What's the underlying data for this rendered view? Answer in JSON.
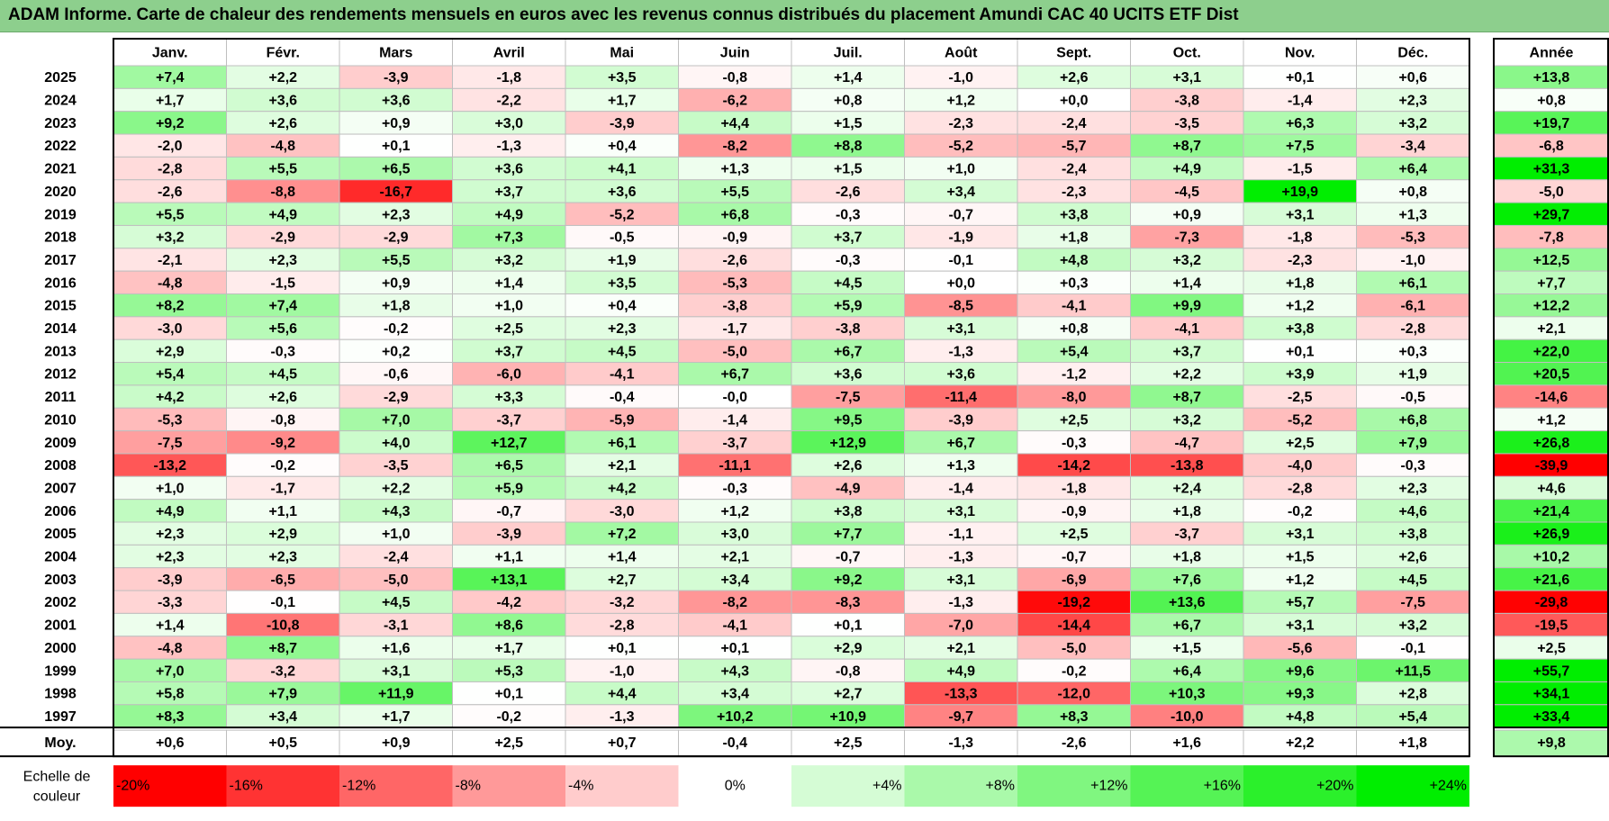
{
  "title": "ADAM Informe. Carte de chaleur des rendements mensuels en euros avec les revenus connus distribués du placement Amundi CAC 40 UCITS ETF Dist",
  "chart_data": {
    "type": "heatmap",
    "months": [
      "Janv.",
      "Févr.",
      "Mars",
      "Avril",
      "Mai",
      "Juin",
      "Juil.",
      "Août",
      "Sept.",
      "Oct.",
      "Nov.",
      "Déc."
    ],
    "year_header": "Année",
    "avg_label": "Moy.",
    "rows": [
      {
        "year": "2025",
        "values": [
          "+7,4",
          "+2,2",
          "-3,9",
          "-1,8",
          "+3,5",
          "-0,8",
          "+1,4",
          "-1,0",
          "+2,6",
          "+3,1",
          "+0,1",
          "+0,6"
        ],
        "annual": "+13,8"
      },
      {
        "year": "2024",
        "values": [
          "+1,7",
          "+3,6",
          "+3,6",
          "-2,2",
          "+1,7",
          "-6,2",
          "+0,8",
          "+1,2",
          "+0,0",
          "-3,8",
          "-1,4",
          "+2,3"
        ],
        "annual": "+0,8"
      },
      {
        "year": "2023",
        "values": [
          "+9,2",
          "+2,6",
          "+0,9",
          "+3,0",
          "-3,9",
          "+4,4",
          "+1,5",
          "-2,3",
          "-2,4",
          "-3,5",
          "+6,3",
          "+3,2"
        ],
        "annual": "+19,7"
      },
      {
        "year": "2022",
        "values": [
          "-2,0",
          "-4,8",
          "+0,1",
          "-1,3",
          "+0,4",
          "-8,2",
          "+8,8",
          "-5,2",
          "-5,7",
          "+8,7",
          "+7,5",
          "-3,4"
        ],
        "annual": "-6,8"
      },
      {
        "year": "2021",
        "values": [
          "-2,8",
          "+5,5",
          "+6,5",
          "+3,6",
          "+4,1",
          "+1,3",
          "+1,5",
          "+1,0",
          "-2,4",
          "+4,9",
          "-1,5",
          "+6,4"
        ],
        "annual": "+31,3"
      },
      {
        "year": "2020",
        "values": [
          "-2,6",
          "-8,8",
          "-16,7",
          "+3,7",
          "+3,6",
          "+5,5",
          "-2,6",
          "+3,4",
          "-2,3",
          "-4,5",
          "+19,9",
          "+0,8"
        ],
        "annual": "-5,0"
      },
      {
        "year": "2019",
        "values": [
          "+5,5",
          "+4,9",
          "+2,3",
          "+4,9",
          "-5,2",
          "+6,8",
          "-0,3",
          "-0,7",
          "+3,8",
          "+0,9",
          "+3,1",
          "+1,3"
        ],
        "annual": "+29,7"
      },
      {
        "year": "2018",
        "values": [
          "+3,2",
          "-2,9",
          "-2,9",
          "+7,3",
          "-0,5",
          "-0,9",
          "+3,7",
          "-1,9",
          "+1,8",
          "-7,3",
          "-1,8",
          "-5,3"
        ],
        "annual": "-7,8"
      },
      {
        "year": "2017",
        "values": [
          "-2,1",
          "+2,3",
          "+5,5",
          "+3,2",
          "+1,9",
          "-2,6",
          "-0,3",
          "-0,1",
          "+4,8",
          "+3,2",
          "-2,3",
          "-1,0"
        ],
        "annual": "+12,5"
      },
      {
        "year": "2016",
        "values": [
          "-4,8",
          "-1,5",
          "+0,9",
          "+1,4",
          "+3,5",
          "-5,3",
          "+4,5",
          "+0,0",
          "+0,3",
          "+1,4",
          "+1,8",
          "+6,1"
        ],
        "annual": "+7,7"
      },
      {
        "year": "2015",
        "values": [
          "+8,2",
          "+7,4",
          "+1,8",
          "+1,0",
          "+0,4",
          "-3,8",
          "+5,9",
          "-8,5",
          "-4,1",
          "+9,9",
          "+1,2",
          "-6,1"
        ],
        "annual": "+12,2"
      },
      {
        "year": "2014",
        "values": [
          "-3,0",
          "+5,6",
          "-0,2",
          "+2,5",
          "+2,3",
          "-1,7",
          "-3,8",
          "+3,1",
          "+0,8",
          "-4,1",
          "+3,8",
          "-2,8"
        ],
        "annual": "+2,1"
      },
      {
        "year": "2013",
        "values": [
          "+2,9",
          "-0,3",
          "+0,2",
          "+3,7",
          "+4,5",
          "-5,0",
          "+6,7",
          "-1,3",
          "+5,4",
          "+3,7",
          "+0,1",
          "+0,3"
        ],
        "annual": "+22,0"
      },
      {
        "year": "2012",
        "values": [
          "+5,4",
          "+4,5",
          "-0,6",
          "-6,0",
          "-4,1",
          "+6,7",
          "+3,6",
          "+3,6",
          "-1,2",
          "+2,2",
          "+3,9",
          "+1,9"
        ],
        "annual": "+20,5"
      },
      {
        "year": "2011",
        "values": [
          "+4,2",
          "+2,6",
          "-2,9",
          "+3,3",
          "-0,4",
          "-0,0",
          "-7,5",
          "-11,4",
          "-8,0",
          "+8,7",
          "-2,5",
          "-0,5"
        ],
        "annual": "-14,6"
      },
      {
        "year": "2010",
        "values": [
          "-5,3",
          "-0,8",
          "+7,0",
          "-3,7",
          "-5,9",
          "-1,4",
          "+9,5",
          "-3,9",
          "+2,5",
          "+3,2",
          "-5,2",
          "+6,8"
        ],
        "annual": "+1,2"
      },
      {
        "year": "2009",
        "values": [
          "-7,5",
          "-9,2",
          "+4,0",
          "+12,7",
          "+6,1",
          "-3,7",
          "+12,9",
          "+6,7",
          "-0,3",
          "-4,7",
          "+2,5",
          "+7,9"
        ],
        "annual": "+26,8"
      },
      {
        "year": "2008",
        "values": [
          "-13,2",
          "-0,2",
          "-3,5",
          "+6,5",
          "+2,1",
          "-11,1",
          "+2,6",
          "+1,3",
          "-14,2",
          "-13,8",
          "-4,0",
          "-0,3"
        ],
        "annual": "-39,9"
      },
      {
        "year": "2007",
        "values": [
          "+1,0",
          "-1,7",
          "+2,2",
          "+5,9",
          "+4,2",
          "-0,3",
          "-4,9",
          "-1,4",
          "-1,8",
          "+2,4",
          "-2,8",
          "+2,3"
        ],
        "annual": "+4,6"
      },
      {
        "year": "2006",
        "values": [
          "+4,9",
          "+1,1",
          "+4,3",
          "-0,7",
          "-3,0",
          "+1,2",
          "+3,8",
          "+3,1",
          "-0,9",
          "+1,8",
          "-0,2",
          "+4,6"
        ],
        "annual": "+21,4"
      },
      {
        "year": "2005",
        "values": [
          "+2,3",
          "+2,9",
          "+1,0",
          "-3,9",
          "+7,2",
          "+3,0",
          "+7,7",
          "-1,1",
          "+2,5",
          "-3,7",
          "+3,1",
          "+3,8"
        ],
        "annual": "+26,9"
      },
      {
        "year": "2004",
        "values": [
          "+2,3",
          "+2,3",
          "-2,4",
          "+1,1",
          "+1,4",
          "+2,1",
          "-0,7",
          "-1,3",
          "-0,7",
          "+1,8",
          "+1,5",
          "+2,6"
        ],
        "annual": "+10,2"
      },
      {
        "year": "2003",
        "values": [
          "-3,9",
          "-6,5",
          "-5,0",
          "+13,1",
          "+2,7",
          "+3,4",
          "+9,2",
          "+3,1",
          "-6,9",
          "+7,6",
          "+1,2",
          "+4,5"
        ],
        "annual": "+21,6"
      },
      {
        "year": "2002",
        "values": [
          "-3,3",
          "-0,1",
          "+4,5",
          "-4,2",
          "-3,2",
          "-8,2",
          "-8,3",
          "-1,3",
          "-19,2",
          "+13,6",
          "+5,7",
          "-7,5"
        ],
        "annual": "-29,8"
      },
      {
        "year": "2001",
        "values": [
          "+1,4",
          "-10,8",
          "-3,1",
          "+8,6",
          "-2,8",
          "-4,1",
          "+0,1",
          "-7,0",
          "-14,4",
          "+6,7",
          "+3,1",
          "+3,2"
        ],
        "annual": "-19,5"
      },
      {
        "year": "2000",
        "values": [
          "-4,8",
          "+8,7",
          "+1,6",
          "+1,7",
          "+0,1",
          "+0,1",
          "+2,9",
          "+2,1",
          "-5,0",
          "+1,5",
          "-5,6",
          "-0,1"
        ],
        "annual": "+2,5"
      },
      {
        "year": "1999",
        "values": [
          "+7,0",
          "-3,2",
          "+3,1",
          "+5,3",
          "-1,0",
          "+4,3",
          "-0,8",
          "+4,9",
          "-0,2",
          "+6,4",
          "+9,6",
          "+11,5"
        ],
        "annual": "+55,7"
      },
      {
        "year": "1998",
        "values": [
          "+5,8",
          "+7,9",
          "+11,9",
          "+0,1",
          "+4,4",
          "+3,4",
          "+2,7",
          "-13,3",
          "-12,0",
          "+10,3",
          "+9,3",
          "+2,8"
        ],
        "annual": "+34,1"
      },
      {
        "year": "1997",
        "values": [
          "+8,3",
          "+3,4",
          "+1,7",
          "-0,2",
          "-1,3",
          "+10,2",
          "+10,9",
          "-9,7",
          "+8,3",
          "-10,0",
          "+4,8",
          "+5,4"
        ],
        "annual": "+33,4"
      }
    ],
    "averages": [
      "+0,6",
      "+0,5",
      "+0,9",
      "+2,5",
      "+0,7",
      "-0,4",
      "+2,5",
      "-1,3",
      "-2,6",
      "+1,6",
      "+2,2",
      "+1,8"
    ],
    "annual_average": "+9,8",
    "scale_label": "Echelle de couleur",
    "scale": [
      {
        "label": "-20%",
        "value": -20,
        "color": "#ff0000"
      },
      {
        "label": "-16%",
        "value": -16,
        "color": "#ff3333"
      },
      {
        "label": "-12%",
        "value": -12,
        "color": "#ff6666"
      },
      {
        "label": "-8%",
        "value": -8,
        "color": "#ff9999"
      },
      {
        "label": "-4%",
        "value": -4,
        "color": "#ffcccc"
      },
      {
        "label": "0%",
        "value": 0,
        "color": "#ffffff"
      },
      {
        "label": "+4%",
        "value": 4,
        "color": "#d5fcd5"
      },
      {
        "label": "+8%",
        "value": 8,
        "color": "#aaf9aa"
      },
      {
        "label": "+12%",
        "value": 12,
        "color": "#80f680"
      },
      {
        "label": "+16%",
        "value": 16,
        "color": "#55f355"
      },
      {
        "label": "+20%",
        "value": 20,
        "color": "#2bf02b"
      },
      {
        "label": "+24%",
        "value": 24,
        "color": "#00ee00"
      }
    ]
  }
}
